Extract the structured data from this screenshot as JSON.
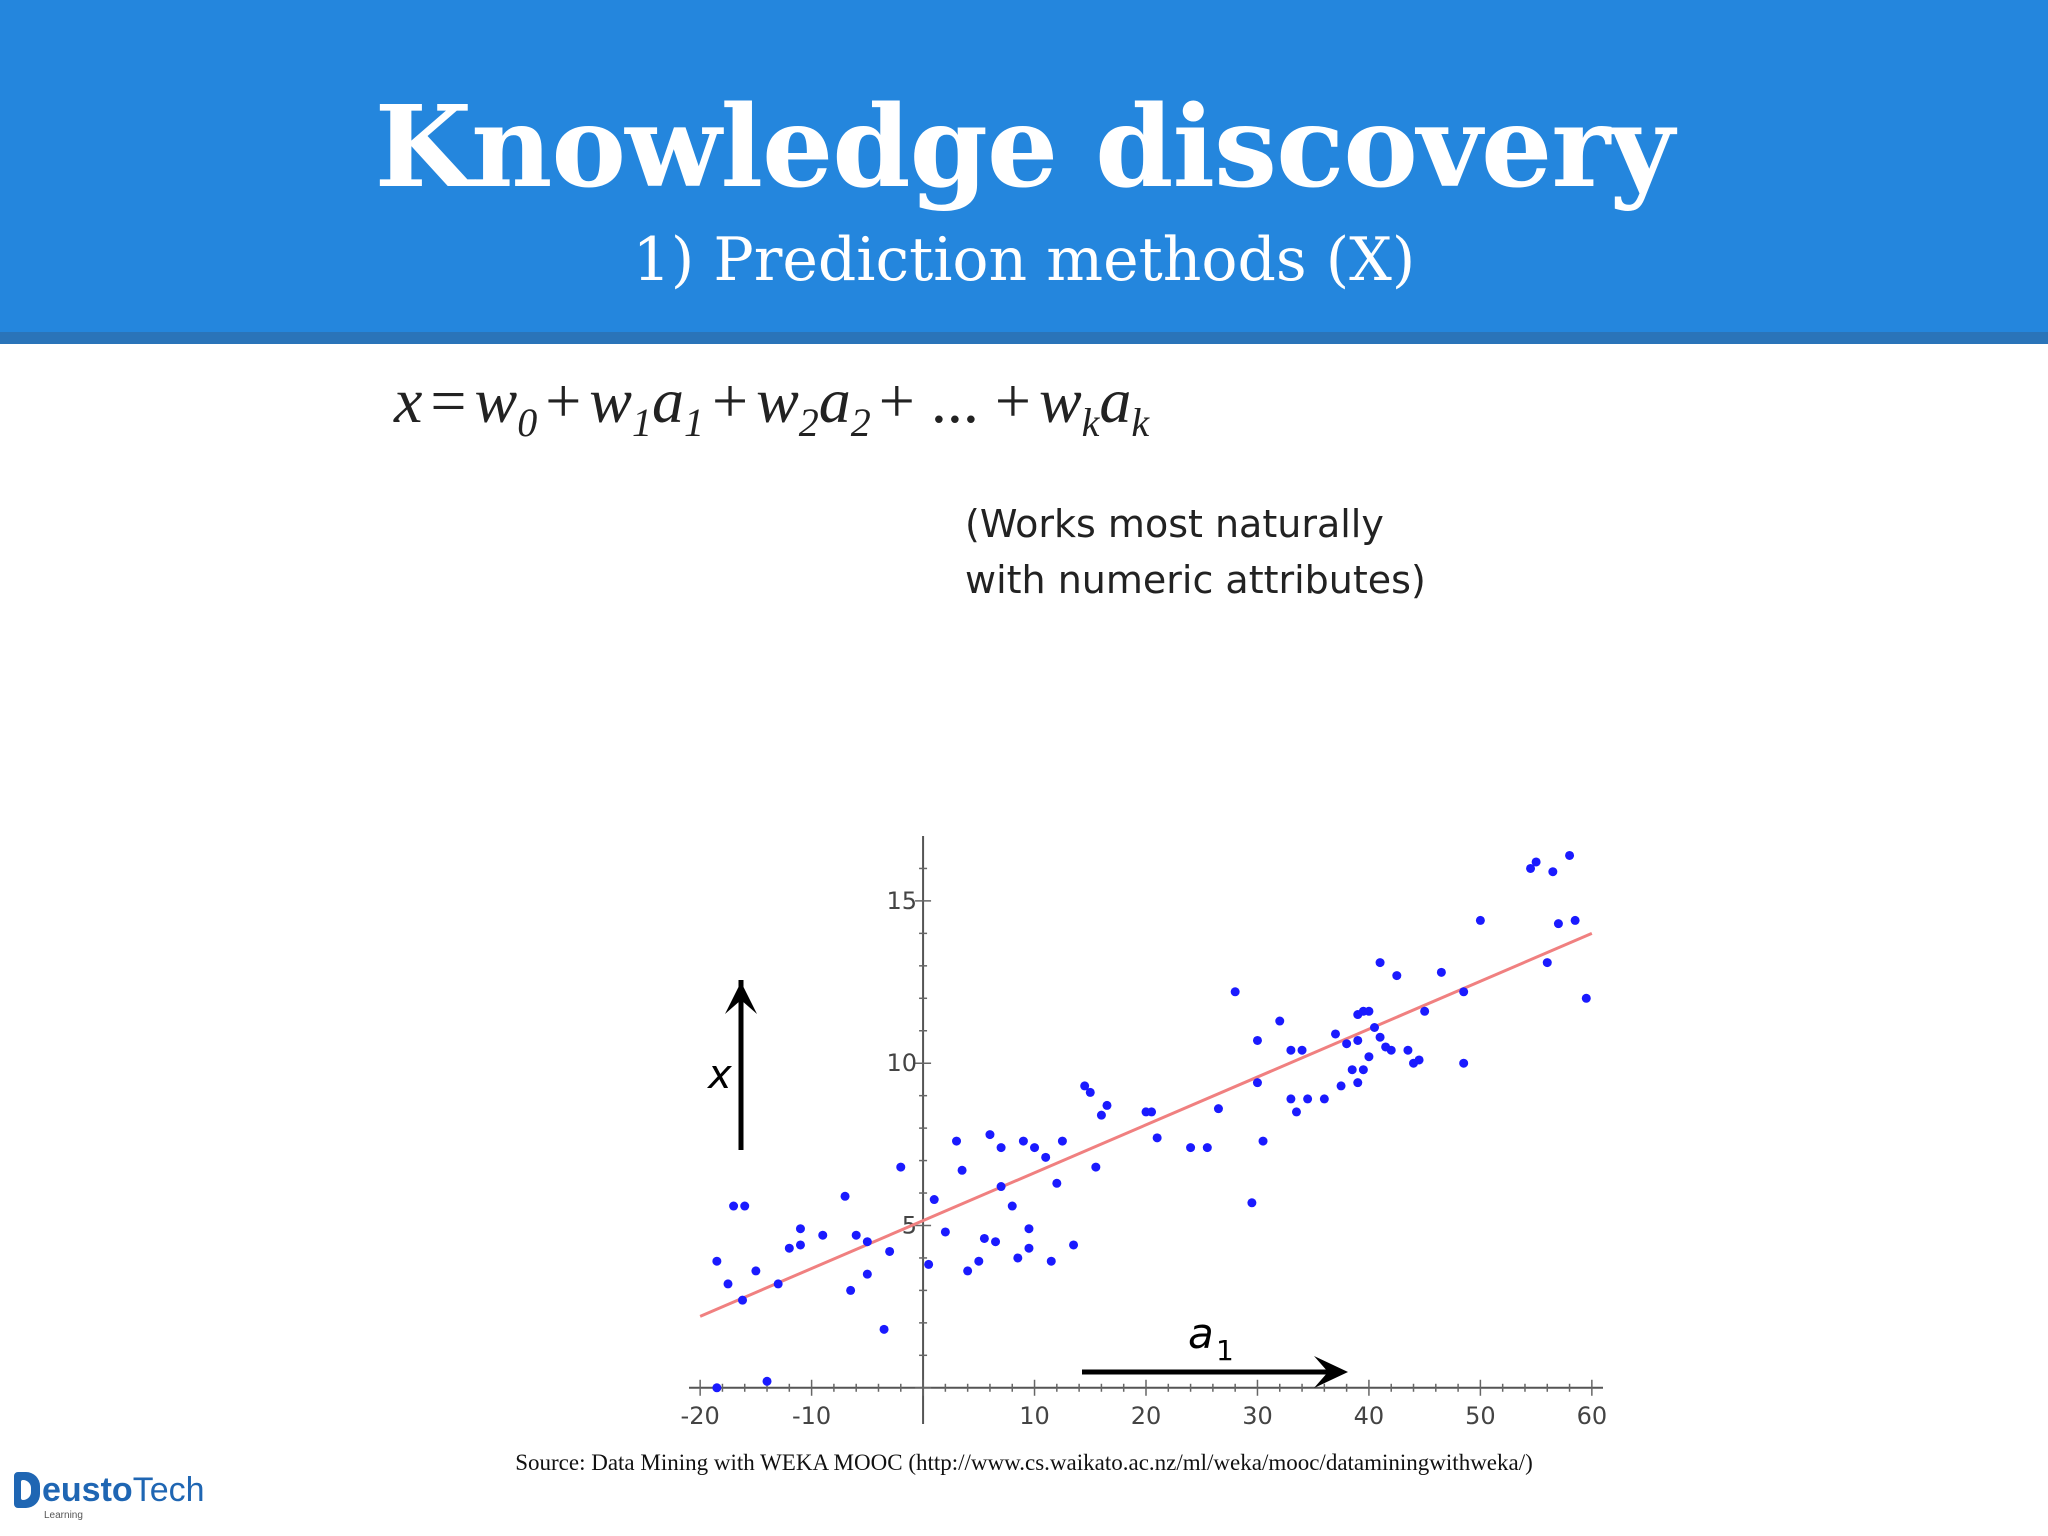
{
  "slide": {
    "title": "Knowledge discovery",
    "subtitle": "1) Prediction methods (X)",
    "note_line1": "(Works most naturally",
    "note_line2": "with numeric attributes)",
    "source": "Source: Data Mining with WEKA MOOC (http://www.cs.waikato.ac.nz/ml/weka/mooc/dataminingwithweka/)",
    "header_color": "#2486dd"
  },
  "formula": {
    "lhs": "x",
    "eq": "=",
    "w0": "w",
    "w0_sub": "0",
    "plus1": "+",
    "w1": "w",
    "w1_sub": "1",
    "a1": "a",
    "a1_sub": "1",
    "plus2": "+",
    "w2": "w",
    "w2_sub": "2",
    "a2": "a",
    "a2_sub": "2",
    "plus3": "+",
    "dots": "...",
    "plus4": "+",
    "wk": "w",
    "wk_sub": "k",
    "ak": "a",
    "ak_sub": "k"
  },
  "logo": {
    "mark": "D",
    "word_bold": "eusto",
    "word_regular": "Tech",
    "sub": "Learning"
  },
  "chart_data": {
    "type": "scatter",
    "xlim": [
      -21,
      61
    ],
    "ylim": [
      -0.5,
      17
    ],
    "x_ticks": [
      -20,
      -10,
      10,
      20,
      30,
      40,
      50,
      60
    ],
    "y_ticks": [
      5,
      10,
      15
    ],
    "y_axis_label": "x",
    "x_axis_label_base": "a",
    "x_axis_label_sub": "1",
    "point_color": "#1a1aff",
    "line_color": "#f08080",
    "regression_line": {
      "x": [
        -20,
        60
      ],
      "y": [
        2.2,
        14.0
      ]
    },
    "points": [
      [
        -18.5,
        0.0
      ],
      [
        -14,
        0.2
      ],
      [
        -18.5,
        3.9
      ],
      [
        -17.5,
        3.2
      ],
      [
        -17,
        5.6
      ],
      [
        -16,
        5.6
      ],
      [
        -16.2,
        2.7
      ],
      [
        -15,
        3.6
      ],
      [
        -13,
        3.2
      ],
      [
        -12,
        4.3
      ],
      [
        -11,
        4.4
      ],
      [
        -11,
        4.9
      ],
      [
        -9,
        4.7
      ],
      [
        -7,
        5.9
      ],
      [
        -6,
        4.7
      ],
      [
        -6.5,
        3.0
      ],
      [
        -5,
        3.5
      ],
      [
        -5,
        4.5
      ],
      [
        -3.5,
        1.8
      ],
      [
        -3,
        4.2
      ],
      [
        -2,
        6.8
      ],
      [
        0.5,
        3.8
      ],
      [
        1,
        5.8
      ],
      [
        2,
        4.8
      ],
      [
        3,
        7.6
      ],
      [
        3.5,
        6.7
      ],
      [
        4,
        3.6
      ],
      [
        5,
        3.9
      ],
      [
        5.5,
        4.6
      ],
      [
        6,
        7.8
      ],
      [
        6.5,
        4.5
      ],
      [
        7,
        6.2
      ],
      [
        7,
        7.4
      ],
      [
        8,
        5.6
      ],
      [
        8.5,
        4.0
      ],
      [
        9,
        7.6
      ],
      [
        9.5,
        4.9
      ],
      [
        9.5,
        4.3
      ],
      [
        10,
        7.4
      ],
      [
        11,
        7.1
      ],
      [
        11.5,
        3.9
      ],
      [
        12,
        6.3
      ],
      [
        12.5,
        7.6
      ],
      [
        13.5,
        4.4
      ],
      [
        14.5,
        9.3
      ],
      [
        15,
        9.1
      ],
      [
        15.5,
        6.8
      ],
      [
        16,
        8.4
      ],
      [
        16.5,
        8.7
      ],
      [
        20,
        8.5
      ],
      [
        20.5,
        8.5
      ],
      [
        21,
        7.7
      ],
      [
        24,
        7.4
      ],
      [
        25.5,
        7.4
      ],
      [
        26.5,
        8.6
      ],
      [
        28,
        12.2
      ],
      [
        29.5,
        5.7
      ],
      [
        30,
        9.4
      ],
      [
        30,
        10.7
      ],
      [
        30.5,
        7.6
      ],
      [
        32,
        11.3
      ],
      [
        33,
        10.4
      ],
      [
        33,
        8.9
      ],
      [
        33.5,
        8.5
      ],
      [
        34,
        10.4
      ],
      [
        34.5,
        8.9
      ],
      [
        36,
        8.9
      ],
      [
        37,
        10.9
      ],
      [
        37.5,
        9.3
      ],
      [
        38,
        10.6
      ],
      [
        38.5,
        9.8
      ],
      [
        39,
        10.7
      ],
      [
        39,
        11.5
      ],
      [
        39.5,
        11.6
      ],
      [
        39,
        9.4
      ],
      [
        39.5,
        9.8
      ],
      [
        40,
        11.6
      ],
      [
        40,
        10.2
      ],
      [
        40.5,
        11.1
      ],
      [
        41,
        10.8
      ],
      [
        41,
        13.1
      ],
      [
        41.5,
        10.5
      ],
      [
        42,
        10.4
      ],
      [
        42.5,
        12.7
      ],
      [
        43.5,
        10.4
      ],
      [
        44,
        10.0
      ],
      [
        44.5,
        10.1
      ],
      [
        45,
        11.6
      ],
      [
        46.5,
        12.8
      ],
      [
        48.5,
        12.2
      ],
      [
        48.5,
        10.0
      ],
      [
        50,
        14.4
      ],
      [
        54.5,
        16.0
      ],
      [
        55,
        16.2
      ],
      [
        56,
        13.1
      ],
      [
        56.5,
        15.9
      ],
      [
        57,
        14.3
      ],
      [
        58,
        16.4
      ],
      [
        58.5,
        14.4
      ],
      [
        59.5,
        12.0
      ]
    ]
  }
}
